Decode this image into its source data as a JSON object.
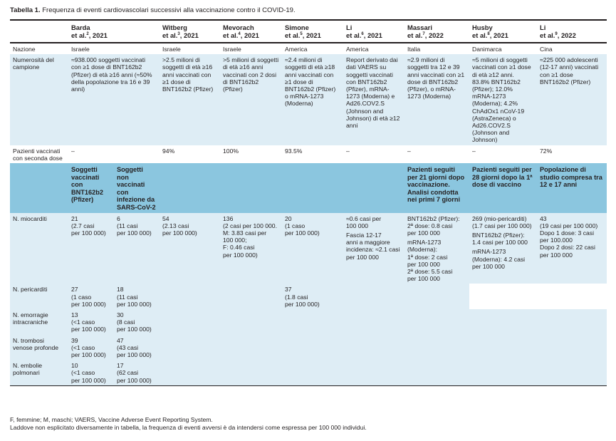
{
  "caption": {
    "label": "Tabella 1.",
    "text": " Frequenza di eventi cardiovascolari successivi alla vaccinazione contro il COVID-19."
  },
  "columns": [
    {
      "name": "Barda",
      "line2": "et al.",
      "ref": "2",
      "year": ", 2021"
    },
    {
      "name": "Witberg",
      "line2": "et al.",
      "ref": "3",
      "year": ", 2021"
    },
    {
      "name": "Mevorach",
      "line2": "et al.",
      "ref": "4",
      "year": ", 2021"
    },
    {
      "name": "Simone",
      "line2": "et al.",
      "ref": "5",
      "year": ", 2021"
    },
    {
      "name": "Li",
      "line2": "et al.",
      "ref": "6",
      "year": ", 2021"
    },
    {
      "name": "Massari",
      "line2": "et al.",
      "ref": "7",
      "year": ", 2022"
    },
    {
      "name": "Husby",
      "line2": "et al.",
      "ref": "8",
      "year": ", 2021"
    },
    {
      "name": "Li",
      "line2": "et al.",
      "ref": "9",
      "year": ", 2022"
    }
  ],
  "nazione": {
    "label": "Nazione",
    "values": [
      "Israele",
      "Israele",
      "Israele",
      "America",
      "America",
      "Italia",
      "Danimarca",
      "Cina"
    ]
  },
  "campione": {
    "label": "Numerosità del campione",
    "values": [
      "≈938.000 soggetti vaccinati con ≥1 dose di BNT162b2 (Pfizer) di età ≥16 anni (≈50% della popolazione tra 16 e 39 anni)",
      ">2.5 milioni di soggetti di età ≥16 anni vaccinati con ≥1 dose di BNT162b2 (Pfizer)",
      ">5 milioni di soggetti di età ≥16 anni vaccinati con 2 dosi di BNT162b2 (Pfizer)",
      "≈2.4 milioni di soggetti di età ≥18 anni vaccinati con ≥1 dose di BNT162b2 (Pfizer) o mRNA-1273 (Moderna)",
      "Report derivato dai dati VAERS su soggetti vaccinati con BNT162b2 (Pfizer), mRNA-1273 (Moderna) e Ad26.COV2.S (Johnson and Johnson) di età ≥12 anni",
      "≈2.9 milioni di soggetti tra 12 e 39 anni vaccinati con ≥1 dose di BNT162b2 (Pfizer), o mRNA-1273 (Moderna)",
      "≈5 milioni di soggetti vaccinati con ≥1 dose di età ≥12 anni.",
      "≈225 000 adolescenti (12-17 anni) vaccinati con ≥1 dose BNT162b2 (Pfizer)"
    ],
    "husby_extra": "83.8% BNT162b2 (Pfizer); 12.0% mRNA-1273 (Moderna); 4.2% ChAdOx1 nCoV-19 (AstraZeneca) o Ad26.COV2.S (Johnson and Johnson)"
  },
  "seconda_dose": {
    "label": "Pazienti vaccinati con seconda dose",
    "values": [
      "–",
      "94%",
      "100%",
      "93.5%",
      "–",
      "–",
      "–",
      "72%"
    ]
  },
  "subheaders": {
    "barda_a": "Soggetti vaccinati con BNT162b2 (Pfizer)",
    "barda_b": "Soggetti non vaccinati con infezione da SARS-CoV-2",
    "massari": "Pazienti seguiti per 21 giorni dopo vaccinazione. Analisi condotta nei primi 7 giorni",
    "husby": "Pazienti seguiti per 28 giorni dopo la 1ª dose di vaccino",
    "li2": "Popolazione di studio compresa tra 12 e 17 anni"
  },
  "miocarditi": {
    "label": "N. miocarditi",
    "barda_a": [
      "21",
      "(2.7 casi",
      "per 100 000)"
    ],
    "barda_b": [
      "6",
      "(11 casi",
      "per 100 000)"
    ],
    "witberg": [
      "54",
      "(2.13 casi",
      "per 100 000)"
    ],
    "mevorach": [
      "136",
      "(2 casi per 100 000.",
      "M: 3.83 casi per",
      "100 000;",
      "F: 0.46 casi",
      "per 100 000)"
    ],
    "simone": [
      "20",
      "(1 caso",
      "per 100 000)"
    ],
    "li": [
      "≈0.6 casi per",
      "100 000"
    ],
    "li_extra": [
      "Fascia 12-17",
      "anni a maggiore",
      "incidenza: ≈2.1 casi",
      "per 100 000"
    ],
    "massari_a": [
      "BNT162b2 (Pfizer):",
      "2ª dose: 0.8 casi",
      "per 100 000"
    ],
    "massari_b": [
      "mRNA-1273",
      "(Moderna):",
      "1ª dose: 2 casi",
      "per 100 000",
      "2ª dose: 5.5 casi",
      "per 100 000"
    ],
    "husby_a": [
      "269 (mio-pericarditi)",
      "(1.7 casi per 100 000)"
    ],
    "husby_b": [
      "BNT162b2 (Pfizer):",
      "1.4 casi per 100 000"
    ],
    "husby_c": [
      "mRNA-1273",
      "(Moderna): 4.2 casi",
      "per 100 000"
    ],
    "li2_a": [
      "43",
      "(19 casi per 100 000)"
    ],
    "li2_b": [
      "Dopo 1 dose: 3 casi",
      "per 100.000"
    ],
    "li2_c": [
      "Dopo 2 dosi: 22 casi",
      "per 100 000"
    ]
  },
  "pericarditi": {
    "label": "N. pericarditi",
    "barda_a": [
      "27",
      "(1 caso",
      "per 100 000)"
    ],
    "barda_b": [
      "18",
      "(11 casi",
      "per 100 000)"
    ],
    "simone": [
      "37",
      "(1.8 casi",
      "per 100 000)"
    ]
  },
  "emorragie": {
    "label": "N. emorragie intracraniche",
    "barda_a": [
      "13",
      "(<1 caso",
      "per 100 000)"
    ],
    "barda_b": [
      "30",
      "(8 casi",
      "per 100 000)"
    ]
  },
  "trombosi": {
    "label": "N. trombosi venose profonde",
    "barda_a": [
      "39",
      "(<1 caso",
      "per 100 000)"
    ],
    "barda_b": [
      "47",
      "(43 casi",
      "per 100 000)"
    ]
  },
  "embolie": {
    "label": "N. embolie polmonari",
    "barda_a": [
      "10",
      "(<1 caso",
      "per 100 000)"
    ],
    "barda_b": [
      "17",
      "(62 casi",
      "per 100 000)"
    ]
  },
  "footnotes": [
    "F, femmine; M, maschi; VAERS, Vaccine Adverse Event Reporting System.",
    "Laddove non esplicitato diversamente in tabella, la frequenza di eventi avversi è da intendersi come espressa per 100 000 individui."
  ]
}
